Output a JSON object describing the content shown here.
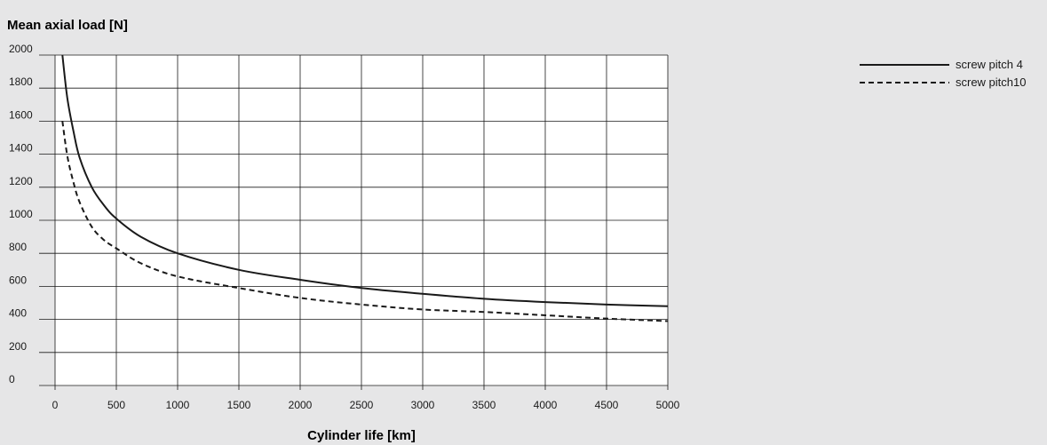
{
  "chart_data": {
    "type": "line",
    "ylabel": "Mean axial load [N]",
    "xlabel": "Cylinder life [km]",
    "xlim": [
      0,
      5000
    ],
    "ylim": [
      0,
      2000
    ],
    "x_ticks": [
      0,
      500,
      1000,
      1500,
      2000,
      2500,
      3000,
      3500,
      4000,
      4500,
      5000
    ],
    "y_ticks": [
      0,
      200,
      400,
      600,
      800,
      1000,
      1200,
      1400,
      1600,
      1800,
      2000
    ],
    "grid": true,
    "legend_position": "top-right",
    "series": [
      {
        "name": "screw pitch 4",
        "line_style": "solid",
        "color": "#1a1a1a",
        "x": [
          60,
          100,
          150,
          200,
          300,
          400,
          500,
          700,
          1000,
          1500,
          2000,
          2500,
          3000,
          3500,
          4000,
          4500,
          5000
        ],
        "y": [
          2000,
          1740,
          1540,
          1380,
          1200,
          1090,
          1010,
          900,
          800,
          700,
          640,
          590,
          555,
          525,
          505,
          490,
          480
        ]
      },
      {
        "name": "screw pitch10",
        "line_style": "dashed",
        "color": "#1a1a1a",
        "x": [
          60,
          100,
          150,
          200,
          300,
          400,
          500,
          700,
          1000,
          1500,
          2000,
          2500,
          3000,
          3500,
          4000,
          4500,
          5000
        ],
        "y": [
          1600,
          1390,
          1230,
          1110,
          960,
          880,
          830,
          740,
          660,
          590,
          530,
          490,
          460,
          445,
          425,
          405,
          390
        ]
      }
    ]
  }
}
